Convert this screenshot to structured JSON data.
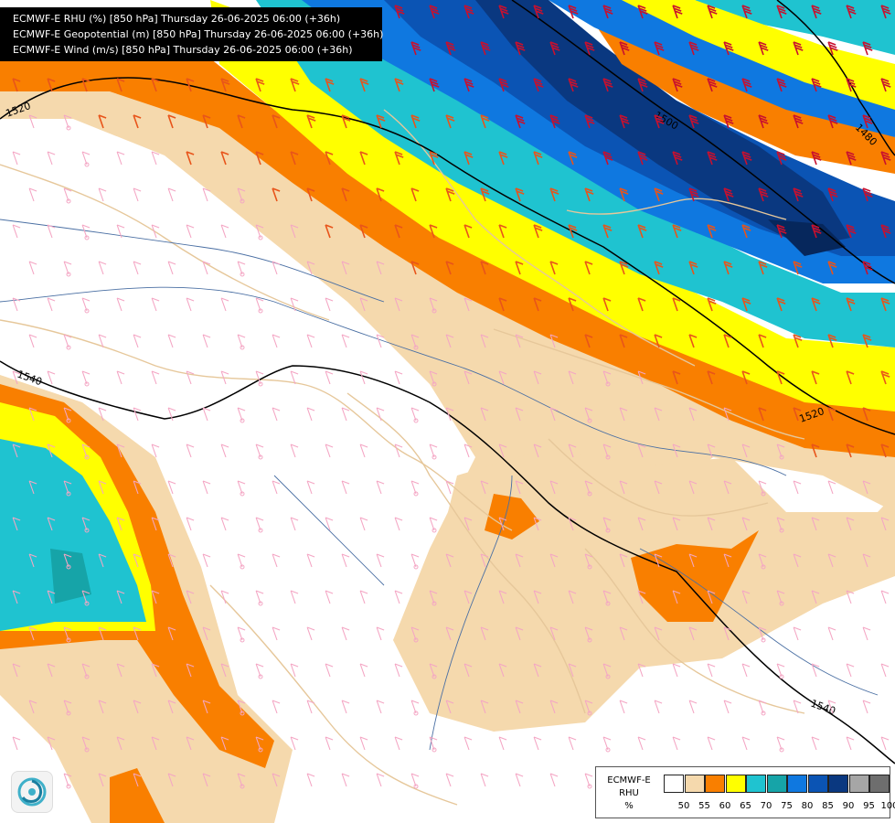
{
  "header": {
    "lines": [
      "ECMWF-E RHU (%) [850 hPa] Thursday 26-06-2025 06:00 (+36h)",
      "ECMWF-E Geopotential (m) [850 hPa] Thursday 26-06-2025 06:00 (+36h)",
      "ECMWF-E Wind (m/s) [850 hPa] Thursday 26-06-2025 06:00 (+36h)"
    ]
  },
  "legend": {
    "title_line1": "ECMWF-E",
    "title_line2": "RHU",
    "title_line3": "%",
    "ticks": [
      "50",
      "55",
      "60",
      "65",
      "70",
      "75",
      "80",
      "85",
      "90",
      "95",
      "100"
    ],
    "colors": [
      "#ffffff",
      "#f5d9ad",
      "#f97f00",
      "#ffff00",
      "#1fc3d0",
      "#16a4a8",
      "#0f78e0",
      "#0b54b4",
      "#0a3880",
      "#a6a6a6",
      "#6e6e6e"
    ]
  },
  "contours": {
    "labels": [
      "1520",
      "1540",
      "1500",
      "1480",
      "1520",
      "1540"
    ]
  },
  "map_colors": {
    "border": "#e6c79a",
    "river": "#4a6fa3",
    "wind_light": "#f4a6c4",
    "wind_strong": "#e8541a",
    "wind_very_strong": "#c8102e"
  },
  "logo": {
    "icon": "swirl-logo-icon"
  }
}
